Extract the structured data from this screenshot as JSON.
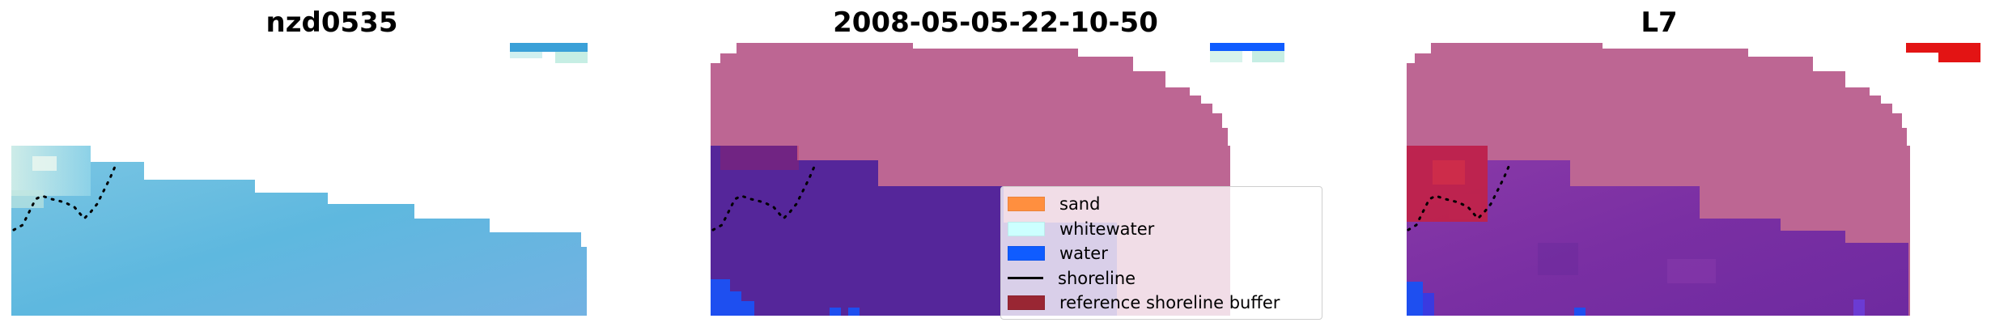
{
  "panels": [
    {
      "title": "nzd0535"
    },
    {
      "title": "2008-05-05-22-10-50"
    },
    {
      "title": "L7"
    }
  ],
  "legend": {
    "items": [
      {
        "label": "sand",
        "color": "#FF8F3F",
        "kind": "patch"
      },
      {
        "label": "whitewater",
        "color": "#CCFFFF",
        "kind": "patch"
      },
      {
        "label": "water",
        "color": "#0F5CFF",
        "kind": "patch"
      },
      {
        "label": "shoreline",
        "color": "#000000",
        "kind": "line"
      },
      {
        "label": "reference shoreline buffer",
        "color": "#992633",
        "kind": "patch"
      }
    ]
  },
  "colors": {
    "ocean": "#64BDE0",
    "land_mask": "#BD6693",
    "water_class": "#55269A",
    "ref_buffer_overlay": "#C72040",
    "water_blue": "#1E4FF0",
    "index_purple": "#7B2FA3",
    "marker_red": "#E31414"
  }
}
